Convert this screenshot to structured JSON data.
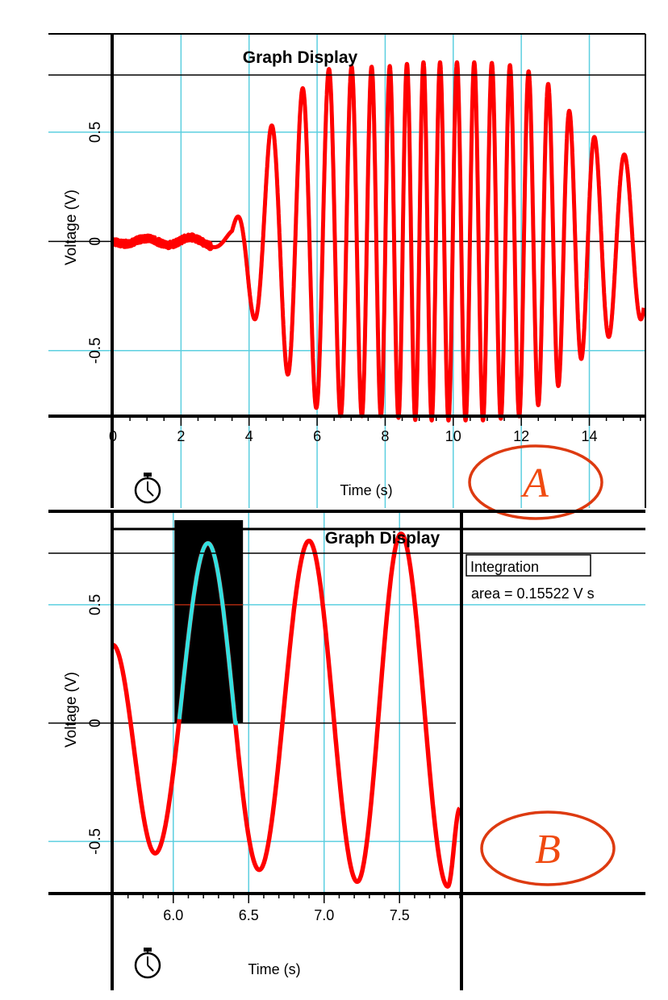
{
  "colors": {
    "signal": "#ff0000",
    "highlight": "#33e0e0",
    "grid": "#5ccfe0",
    "axis": "#000000",
    "label_ellipse": "#dd3a10",
    "label_text": "#f04a10",
    "mean_line": "#aa2a10"
  },
  "chart_data": [
    {
      "type": "line",
      "panel_label": "A",
      "title": "Graph Display",
      "xlabel": "Time (s)",
      "ylabel": "Voltage (V)",
      "xlim": [
        0,
        15.6
      ],
      "ylim": [
        -0.8,
        0.95
      ],
      "x_ticks": [
        "0",
        "2",
        "4",
        "6",
        "8",
        "10",
        "12",
        "14"
      ],
      "y_ticks": [
        "0.5",
        "0",
        "-0.5"
      ],
      "grid": true,
      "icon": "stopwatch-icon",
      "series": [
        {
          "name": "Voltage",
          "envelope_t": [
            0,
            2.8,
            3.5,
            4.0,
            4.6,
            5.2,
            5.8,
            6.5,
            7.2,
            8.0,
            9.0,
            10.0,
            11.0,
            12.0,
            12.8,
            13.5,
            14.2,
            15.0,
            15.6
          ],
          "envelope_amp": [
            0.01,
            0.02,
            0.05,
            0.3,
            0.52,
            0.62,
            0.75,
            0.8,
            0.8,
            0.8,
            0.82,
            0.82,
            0.82,
            0.8,
            0.72,
            0.58,
            0.47,
            0.4,
            0.35
          ],
          "phase_t": [
            0,
            3.2,
            4.6,
            5.8,
            7.0,
            8.0,
            9.0,
            10.0,
            11.0,
            12.0,
            13.0,
            14.0,
            15.0,
            15.6
          ],
          "period_s": [
            1.3,
            1.3,
            1.0,
            0.8,
            0.62,
            0.52,
            0.48,
            0.5,
            0.52,
            0.55,
            0.6,
            0.78,
            0.95,
            1.0
          ]
        }
      ]
    },
    {
      "type": "line",
      "panel_label": "B",
      "title": "Graph Display",
      "xlabel": "Time (s)",
      "ylabel": "Voltage (V)",
      "xlim": [
        5.6,
        7.9
      ],
      "ylim": [
        -0.72,
        0.82
      ],
      "x_ticks": [
        "6.0",
        "6.5",
        "7.0",
        "7.5"
      ],
      "y_ticks": [
        "0.5",
        "0",
        "-0.5"
      ],
      "grid": true,
      "icon": "stopwatch-icon",
      "integration": {
        "label": "Integration",
        "result": "area = 0.15522 V s",
        "x_range": [
          6.04,
          6.43
        ]
      },
      "series": [
        {
          "name": "Voltage",
          "peaks": [
            {
              "t": 5.6,
              "v": 0.33
            },
            {
              "t": 5.88,
              "v": -0.55
            },
            {
              "t": 6.23,
              "v": 0.76
            },
            {
              "t": 6.57,
              "v": -0.62
            },
            {
              "t": 6.9,
              "v": 0.77
            },
            {
              "t": 7.22,
              "v": -0.67
            },
            {
              "t": 7.51,
              "v": 0.8
            },
            {
              "t": 7.82,
              "v": -0.69
            },
            {
              "t": 7.9,
              "v": -0.36
            }
          ]
        }
      ]
    }
  ]
}
